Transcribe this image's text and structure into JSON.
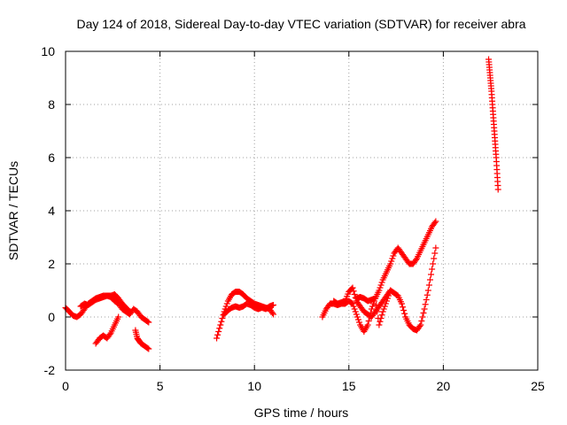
{
  "chart_data": {
    "type": "scatter",
    "title": "Day 124 of 2018, Sidereal Day-to-day VTEC variation (SDTVAR) for receiver abra",
    "xlabel": "GPS time / hours",
    "ylabel": "SDTVAR / TECUs",
    "xlim": [
      0,
      25
    ],
    "ylim": [
      -2,
      10
    ],
    "xticks": [
      "0",
      "5",
      "10",
      "15",
      "20",
      "25"
    ],
    "yticks": [
      "-2",
      "0",
      "2",
      "4",
      "6",
      "8",
      "10"
    ],
    "grid": true,
    "marker": "+",
    "series": [
      {
        "name": "SDTVAR",
        "color": "#ff0000",
        "segments": [
          {
            "x": [
              0.0,
              0.2,
              0.4,
              0.6,
              0.8,
              1.0,
              1.2,
              1.4,
              1.6,
              1.8,
              2.0,
              2.2,
              2.4,
              2.6,
              2.8,
              3.0,
              3.2,
              3.4,
              3.6,
              3.8,
              4.0,
              4.2,
              4.4
            ],
            "y": [
              0.35,
              0.2,
              0.05,
              0.0,
              0.1,
              0.3,
              0.5,
              0.6,
              0.7,
              0.75,
              0.8,
              0.8,
              0.75,
              0.6,
              0.5,
              0.3,
              0.2,
              0.1,
              0.3,
              0.2,
              0.0,
              -0.1,
              -0.2
            ]
          },
          {
            "x": [
              0.8,
              1.0,
              1.2,
              1.4,
              1.6,
              1.8,
              2.0,
              2.2,
              2.4,
              2.6,
              2.8,
              3.0,
              3.2,
              3.4
            ],
            "y": [
              0.4,
              0.5,
              0.45,
              0.55,
              0.65,
              0.7,
              0.75,
              0.8,
              0.8,
              0.85,
              0.7,
              0.5,
              0.35,
              0.2
            ]
          },
          {
            "x": [
              1.6,
              1.8,
              2.0,
              2.2,
              2.4,
              2.6,
              2.8
            ],
            "y": [
              -1.0,
              -0.8,
              -0.7,
              -0.8,
              -0.6,
              -0.3,
              0.0
            ]
          },
          {
            "x": [
              3.7,
              3.8,
              3.9,
              4.0,
              4.2,
              4.4
            ],
            "y": [
              -0.5,
              -0.8,
              -0.9,
              -1.0,
              -1.1,
              -1.2
            ]
          },
          {
            "x": [
              8.0,
              8.2,
              8.4,
              8.6,
              8.8,
              9.0,
              9.2,
              9.4,
              9.6,
              9.8,
              10.0,
              10.2,
              10.4,
              10.6,
              10.8,
              11.0
            ],
            "y": [
              -0.8,
              -0.3,
              0.2,
              0.6,
              0.85,
              0.95,
              0.95,
              0.85,
              0.7,
              0.6,
              0.5,
              0.45,
              0.4,
              0.35,
              0.3,
              0.1
            ]
          },
          {
            "x": [
              8.4,
              8.6,
              8.8,
              9.0,
              9.2,
              9.4,
              9.6,
              9.8,
              10.0,
              10.2,
              10.4,
              10.6,
              10.8,
              11.0
            ],
            "y": [
              0.1,
              0.25,
              0.35,
              0.4,
              0.35,
              0.4,
              0.5,
              0.45,
              0.35,
              0.3,
              0.35,
              0.3,
              0.4,
              0.45
            ]
          },
          {
            "x": [
              13.6,
              13.8,
              14.0,
              14.2,
              14.4,
              14.6,
              14.8,
              15.0,
              15.2,
              15.4,
              15.6,
              15.8,
              16.0,
              16.2,
              16.4,
              16.6,
              16.8,
              17.0,
              17.2,
              17.4,
              17.6,
              17.8,
              18.0,
              18.2,
              18.4,
              18.6,
              18.8,
              19.0,
              19.2,
              19.4,
              19.6
            ],
            "y": [
              0.0,
              0.3,
              0.5,
              0.5,
              0.45,
              0.5,
              0.5,
              0.6,
              0.5,
              0.1,
              -0.3,
              -0.55,
              -0.3,
              0.3,
              0.7,
              1.0,
              1.4,
              1.7,
              2.0,
              2.4,
              2.6,
              2.4,
              2.2,
              2.0,
              2.0,
              2.2,
              2.5,
              2.8,
              3.1,
              3.4,
              3.6
            ]
          },
          {
            "x": [
              14.2,
              14.4,
              14.6,
              14.8,
              15.0,
              15.2,
              15.4,
              15.6,
              15.8,
              16.0,
              16.2,
              16.4,
              16.6,
              16.8,
              17.0,
              17.2,
              17.4,
              17.6,
              17.8,
              18.0,
              18.2,
              18.4,
              18.6,
              18.8,
              19.0,
              19.2,
              19.4,
              19.6
            ],
            "y": [
              0.6,
              0.5,
              0.55,
              0.6,
              0.95,
              1.1,
              0.6,
              0.4,
              0.2,
              0.1,
              0.0,
              0.2,
              0.4,
              0.6,
              0.8,
              1.0,
              0.9,
              0.8,
              0.5,
              0.0,
              -0.3,
              -0.45,
              -0.5,
              -0.3,
              0.3,
              1.0,
              1.8,
              2.6
            ]
          },
          {
            "x": [
              15.4,
              15.6,
              15.8,
              16.0,
              16.2,
              16.4,
              16.6,
              16.8,
              17.0,
              17.2
            ],
            "y": [
              0.7,
              0.75,
              0.7,
              0.6,
              0.65,
              0.7,
              -0.3,
              0.2,
              0.6,
              1.0
            ]
          },
          {
            "x": [
              22.4,
              22.45,
              22.5,
              22.55,
              22.6,
              22.65,
              22.7,
              22.75,
              22.8,
              22.85,
              22.9
            ],
            "y": [
              9.7,
              9.3,
              8.9,
              8.5,
              8.0,
              7.5,
              7.0,
              6.5,
              6.0,
              5.4,
              4.8
            ]
          }
        ]
      }
    ]
  }
}
